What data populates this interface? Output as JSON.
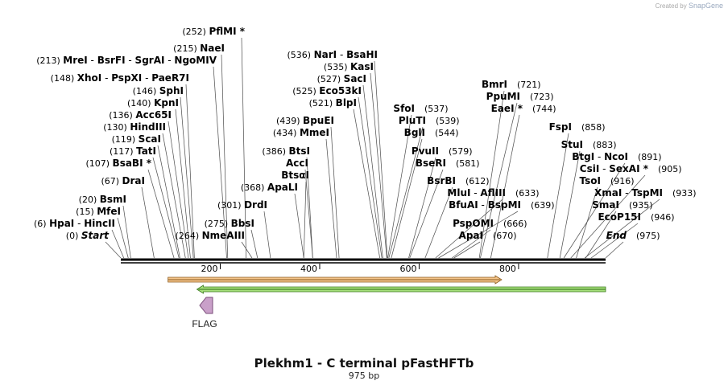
{
  "credit": {
    "prefix": "Created by",
    "brand": "SnapGene"
  },
  "title": "Plekhm1 - C terminal pFastHFTb",
  "subtitle": "975 bp",
  "axis": {
    "length": 975,
    "ticks": [
      "200",
      "400",
      "600",
      "800"
    ]
  },
  "features": [
    {
      "name": "FLAG",
      "start": 162,
      "end": 186,
      "direction": "reverse",
      "color": "#c9a0c9"
    },
    {
      "name": "orange-arrow",
      "start": 95,
      "end": 766,
      "direction": "forward",
      "color": "#f4c48a"
    },
    {
      "name": "green-arrow",
      "start": 153,
      "end": 975,
      "direction": "reverse",
      "color": "#a6e07c"
    }
  ],
  "sites": [
    {
      "pos": "(252)",
      "names": [
        "PflMI *"
      ],
      "bp": 252
    },
    {
      "pos": "(215)",
      "names": [
        "NaeI"
      ],
      "bp": 215
    },
    {
      "pos": "(213)",
      "names": [
        "MreI",
        "BsrFI",
        "SgrAI",
        "NgoMIV"
      ],
      "bp": 213
    },
    {
      "pos": "(148)",
      "names": [
        "XhoI",
        "PspXI",
        "PaeR7I"
      ],
      "bp": 148
    },
    {
      "pos": "(146)",
      "names": [
        "SphI"
      ],
      "bp": 146
    },
    {
      "pos": "(140)",
      "names": [
        "KpnI"
      ],
      "bp": 140
    },
    {
      "pos": "(136)",
      "names": [
        "Acc65I"
      ],
      "bp": 136
    },
    {
      "pos": "(130)",
      "names": [
        "HindIII"
      ],
      "bp": 130
    },
    {
      "pos": "(119)",
      "names": [
        "ScaI"
      ],
      "bp": 119
    },
    {
      "pos": "(117)",
      "names": [
        "TatI"
      ],
      "bp": 117
    },
    {
      "pos": "(107)",
      "names": [
        "BsaBI *"
      ],
      "bp": 107
    },
    {
      "pos": "(67)",
      "names": [
        "DraI"
      ],
      "bp": 67
    },
    {
      "pos": "(20)",
      "names": [
        "BsmI"
      ],
      "bp": 20
    },
    {
      "pos": "(15)",
      "names": [
        "MfeI"
      ],
      "bp": 15
    },
    {
      "pos": "(6)",
      "names": [
        "HpaI",
        "HincII"
      ],
      "bp": 6
    },
    {
      "pos": "(0)",
      "names": [
        "Start"
      ],
      "bp": 0,
      "italic": true
    },
    {
      "pos": "(264)",
      "names": [
        "NmeAIII"
      ],
      "bp": 264
    },
    {
      "pos": "(275)",
      "names": [
        "BbsI"
      ],
      "bp": 275
    },
    {
      "pos": "(301)",
      "names": [
        "DrdI"
      ],
      "bp": 301
    },
    {
      "pos": "(368)",
      "names": [
        "ApaLI"
      ],
      "bp": 368
    },
    {
      "pos": "",
      "names": [
        "BtsαI"
      ],
      "bp": 368
    },
    {
      "pos": "",
      "names": [
        "AccI"
      ],
      "bp": 386
    },
    {
      "pos": "(386)",
      "names": [
        "BtsI"
      ],
      "bp": 386
    },
    {
      "pos": "(434)",
      "names": [
        "MmeI"
      ],
      "bp": 434
    },
    {
      "pos": "(439)",
      "names": [
        "BpuEI"
      ],
      "bp": 439
    },
    {
      "pos": "(536)",
      "names": [
        "NarI",
        "BsaHI"
      ],
      "bp": 536
    },
    {
      "pos": "(535)",
      "names": [
        "KasI"
      ],
      "bp": 535
    },
    {
      "pos": "(527)",
      "names": [
        "SacI"
      ],
      "bp": 527
    },
    {
      "pos": "(525)",
      "names": [
        "Eco53kI"
      ],
      "bp": 525
    },
    {
      "pos": "(521)",
      "names": [
        "BlpI"
      ],
      "bp": 521
    },
    {
      "pos": "(537)",
      "names": [
        "SfoI"
      ],
      "bp": 537
    },
    {
      "pos": "(539)",
      "names": [
        "PluTI"
      ],
      "bp": 539
    },
    {
      "pos": "(544)",
      "names": [
        "BglI"
      ],
      "bp": 544
    },
    {
      "pos": "(579)",
      "names": [
        "PvuII"
      ],
      "bp": 579
    },
    {
      "pos": "(581)",
      "names": [
        "BseRI"
      ],
      "bp": 581
    },
    {
      "pos": "(612)",
      "names": [
        "BsrBI"
      ],
      "bp": 612
    },
    {
      "pos": "(633)",
      "names": [
        "MluI",
        "AflIII"
      ],
      "bp": 633
    },
    {
      "pos": "(639)",
      "names": [
        "BfuAI",
        "BspMI"
      ],
      "bp": 639
    },
    {
      "pos": "(666)",
      "names": [
        "PspOMI"
      ],
      "bp": 666
    },
    {
      "pos": "(670)",
      "names": [
        "ApaI"
      ],
      "bp": 670
    },
    {
      "pos": "(721)",
      "names": [
        "BmrI"
      ],
      "bp": 721
    },
    {
      "pos": "(723)",
      "names": [
        "PpuMI"
      ],
      "bp": 723
    },
    {
      "pos": "(744)",
      "names": [
        "EaeI *"
      ],
      "bp": 744
    },
    {
      "pos": "(858)",
      "names": [
        "FspI"
      ],
      "bp": 858
    },
    {
      "pos": "(883)",
      "names": [
        "StuI"
      ],
      "bp": 883
    },
    {
      "pos": "(891)",
      "names": [
        "BtgI",
        "NcoI"
      ],
      "bp": 891
    },
    {
      "pos": "(905)",
      "names": [
        "CsiI",
        "SexAI *"
      ],
      "bp": 905
    },
    {
      "pos": "(916)",
      "names": [
        "TsoI"
      ],
      "bp": 916
    },
    {
      "pos": "(933)",
      "names": [
        "XmaI",
        "TspMI"
      ],
      "bp": 933
    },
    {
      "pos": "(935)",
      "names": [
        "SmaI"
      ],
      "bp": 935
    },
    {
      "pos": "(946)",
      "names": [
        "EcoP15I"
      ],
      "bp": 946
    },
    {
      "pos": "(975)",
      "names": [
        "End"
      ],
      "bp": 975,
      "italic": true
    }
  ]
}
